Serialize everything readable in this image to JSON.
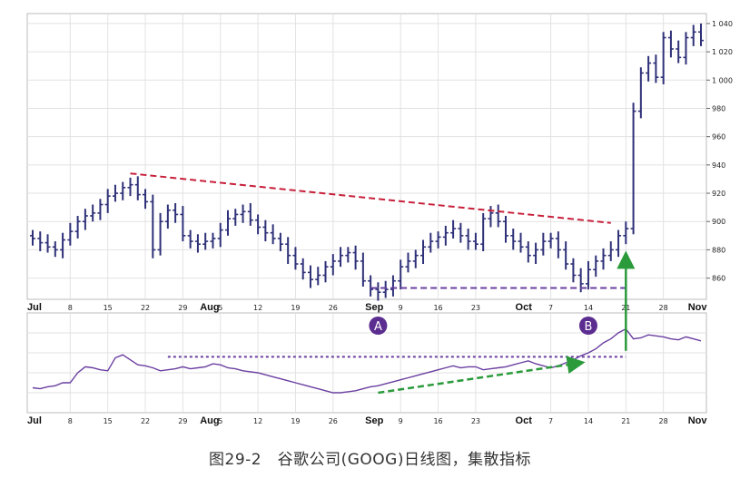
{
  "caption": "图29-2　谷歌公司(GOOG)日线图，集散指标",
  "chart_data": {
    "type": "ohlc",
    "title": "",
    "price_axis": {
      "ticks": [
        860,
        880,
        900,
        920,
        940,
        960,
        980,
        1000,
        1020,
        1040
      ],
      "tick_labels": [
        "860",
        "880",
        "900",
        "920",
        "940",
        "960",
        "980",
        "1 000",
        "1 020",
        "1 040"
      ],
      "ylim": [
        845,
        1047
      ]
    },
    "x_axis": {
      "labels": [
        {
          "i": 0,
          "text": "Jul",
          "month": true
        },
        {
          "i": 5,
          "text": "8",
          "month": false
        },
        {
          "i": 10,
          "text": "15",
          "month": false
        },
        {
          "i": 15,
          "text": "22",
          "month": false
        },
        {
          "i": 20,
          "text": "29",
          "month": false
        },
        {
          "i": 23,
          "text": "Aug",
          "month": true
        },
        {
          "i": 25,
          "text": "5",
          "month": false
        },
        {
          "i": 30,
          "text": "12",
          "month": false
        },
        {
          "i": 35,
          "text": "19",
          "month": false
        },
        {
          "i": 40,
          "text": "26",
          "month": false
        },
        {
          "i": 45,
          "text": "Sep",
          "month": true
        },
        {
          "i": 49,
          "text": "9",
          "month": false
        },
        {
          "i": 54,
          "text": "16",
          "month": false
        },
        {
          "i": 59,
          "text": "23",
          "month": false
        },
        {
          "i": 65,
          "text": "Oct",
          "month": true
        },
        {
          "i": 69,
          "text": "7",
          "month": false
        },
        {
          "i": 74,
          "text": "14",
          "month": false
        },
        {
          "i": 79,
          "text": "21",
          "month": false
        },
        {
          "i": 84,
          "text": "28",
          "month": false
        },
        {
          "i": 88,
          "text": "Nov",
          "month": true
        }
      ],
      "n_bars": 90
    },
    "close": [
      888,
      885,
      882,
      880,
      887,
      893,
      900,
      904,
      906,
      912,
      918,
      920,
      924,
      926,
      919,
      914,
      880,
      900,
      908,
      905,
      890,
      886,
      884,
      886,
      888,
      894,
      902,
      905,
      907,
      901,
      896,
      892,
      888,
      884,
      876,
      870,
      864,
      859,
      862,
      868,
      872,
      876,
      878,
      872,
      858,
      852,
      850,
      852,
      858,
      868,
      872,
      876,
      882,
      886,
      889,
      892,
      895,
      890,
      886,
      884,
      902,
      906,
      900,
      890,
      886,
      882,
      876,
      880,
      886,
      888,
      880,
      870,
      862,
      856,
      866,
      872,
      876,
      880,
      890,
      895,
      978,
      1005,
      1012,
      1002,
      1030,
      1022,
      1016,
      1030,
      1034,
      1028
    ],
    "ad_indicator": {
      "values": [
        25,
        24,
        26,
        27,
        30,
        30,
        40,
        46,
        45,
        43,
        42,
        55,
        58,
        53,
        48,
        47,
        45,
        42,
        43,
        44,
        46,
        44,
        45,
        46,
        49,
        48,
        45,
        44,
        42,
        41,
        40,
        38,
        36,
        34,
        32,
        30,
        28,
        26,
        24,
        22,
        20,
        20,
        21,
        22,
        24,
        26,
        27,
        29,
        31,
        33,
        35,
        37,
        39,
        41,
        43,
        45,
        47,
        45,
        46,
        46,
        43,
        44,
        45,
        46,
        48,
        50,
        52,
        49,
        47,
        45,
        47,
        50,
        53,
        57,
        60,
        64,
        70,
        74,
        80,
        84,
        74,
        75,
        78,
        77,
        76,
        74,
        73,
        76,
        74,
        72
      ],
      "range": [
        0,
        100
      ]
    },
    "annotations": [
      {
        "type": "line",
        "panel": "price",
        "color": "#c8203b",
        "style": "dashed",
        "from": [
          13,
          934
        ],
        "to": [
          77,
          899
        ]
      },
      {
        "type": "line",
        "panel": "price",
        "color": "#6a3fa0",
        "style": "dashed",
        "from": [
          45,
          853
        ],
        "to": [
          79,
          853
        ]
      },
      {
        "type": "line",
        "panel": "indicator",
        "color": "#6a3fa0",
        "style": "dotted",
        "from": [
          18,
          56
        ],
        "to": [
          79,
          56
        ]
      },
      {
        "type": "arrow",
        "panel": "indicator",
        "color": "#2a9a3a",
        "style": "dashed",
        "from": [
          46,
          20
        ],
        "to": [
          73,
          50
        ]
      },
      {
        "type": "arrow",
        "panel": "cross",
        "color": "#2a9a3a",
        "style": "solid",
        "from_indicator": [
          79,
          62
        ],
        "to_price": [
          79,
          880
        ]
      }
    ],
    "labels": [
      {
        "text": "A",
        "at": 46
      },
      {
        "text": "B",
        "at": 74
      }
    ],
    "colors": {
      "bars": "#2f3178",
      "indicator": "#6a3fa0",
      "grid": "#e2e2e2"
    },
    "grid": true
  }
}
